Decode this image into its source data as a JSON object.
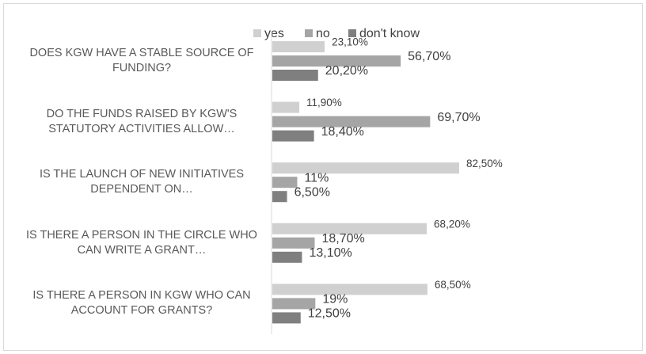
{
  "chart_data": {
    "type": "bar",
    "orientation": "horizontal",
    "categories": [
      "DOES KGW HAVE A STABLE SOURCE OF FUNDING?",
      "DO THE FUNDS RAISED BY KGW'S STATUTORY ACTIVITIES ALLOW…",
      "IS THE LAUNCH OF NEW INITIATIVES DEPENDENT ON…",
      "IS THERE A PERSON IN THE CIRCLE WHO CAN WRITE A GRANT…",
      "IS THERE A PERSON IN KGW WHO CAN ACCOUNT FOR GRANTS?"
    ],
    "series": [
      {
        "name": "yes",
        "color": "#d0d0d0",
        "values": [
          23.1,
          11.9,
          82.5,
          68.2,
          68.5
        ],
        "value_labels": [
          "23,10%",
          "11,90%",
          "82,50%",
          "68,20%",
          "68,50%"
        ]
      },
      {
        "name": "no",
        "color": "#a5a5a5",
        "values": [
          56.7,
          69.7,
          11,
          18.7,
          19
        ],
        "value_labels": [
          "56,70%",
          "69,70%",
          "11%",
          "18,70%",
          "19%"
        ]
      },
      {
        "name": "don't know",
        "color": "#7f7f7f",
        "values": [
          20.2,
          18.4,
          6.5,
          13.1,
          12.5
        ],
        "value_labels": [
          "20,20%",
          "18,40%",
          "6,50%",
          "13,10%",
          "12,50%"
        ]
      }
    ],
    "legend": "top"
  }
}
